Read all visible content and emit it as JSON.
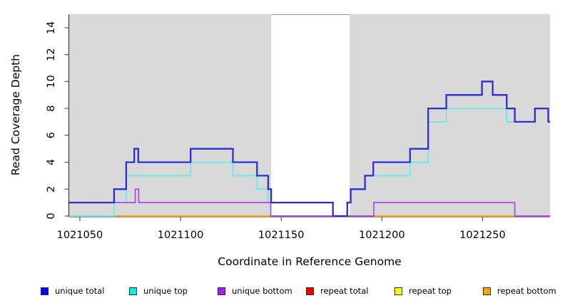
{
  "chart_data": {
    "type": "line",
    "subtype": "step-coverage-plot",
    "title": "",
    "xlabel": "Coordinate in Reference Genome",
    "ylabel": "Read Coverage Depth",
    "xlim": [
      1021044.7,
      1021283.5
    ],
    "ylim": [
      0,
      15
    ],
    "x_ticks": [
      1021050,
      1021100,
      1021150,
      1021200,
      1021250
    ],
    "y_ticks": [
      0,
      2,
      4,
      6,
      8,
      10,
      12,
      14
    ],
    "grid": "off",
    "plot_bg": "#d9d9d9",
    "gap_region": {
      "x0": 1021145,
      "x1": 1021184,
      "fill": "#ffffff",
      "note": "white vertical band over full plot height"
    },
    "series": [
      {
        "name": "repeat total",
        "legend_color": "#ee0000",
        "line_color": "#dd4466",
        "width": 1.5,
        "note": "depth 0 across plot; hidden beneath other zero-depth lines",
        "segments": [
          {
            "points": [
              [
                1021044.7,
                0
              ]
            ],
            "end": 1021283.5
          }
        ]
      },
      {
        "name": "repeat top",
        "legend_color": "#ffff00",
        "line_color": "#93e493",
        "width": 1.9,
        "note": "depth 0 on left flank; renders pale green where it overlaps unique-top at 0",
        "segments": [
          {
            "points": [
              [
                1021044.7,
                0
              ]
            ],
            "end": 1021067
          }
        ]
      },
      {
        "name": "unique top",
        "legend_color": "#00eeee",
        "line_color": "#66e8ea",
        "width": 1.7,
        "segments": [
          {
            "points": [
              [
                1021044.7,
                0
              ],
              [
                1021067,
                1
              ],
              [
                1021073,
                3
              ],
              [
                1021105,
                4
              ],
              [
                1021126,
                3
              ],
              [
                1021138,
                2
              ],
              [
                1021143.5,
                1
              ]
            ],
            "end": 1021145
          },
          {
            "points": [
              [
                1021195.7,
                3
              ],
              [
                1021214,
                4
              ],
              [
                1021223,
                7
              ],
              [
                1021232,
                8
              ],
              [
                1021262,
                7
              ],
              [
                1021276,
                8
              ],
              [
                1021282.6,
                7
              ]
            ],
            "end": 1021283.5
          }
        ]
      },
      {
        "name": "repeat bottom",
        "legend_color": "#ffa500",
        "line_color": "#ffa319",
        "width": 1.9,
        "segments": [
          {
            "points": [
              [
                1021067,
                0
              ]
            ],
            "end": 1021145
          },
          {
            "points": [
              [
                1021196,
                0
              ]
            ],
            "end": 1021266
          }
        ]
      },
      {
        "name": "unique bottom",
        "legend_color": "#a020f0",
        "line_color": "#a948e8",
        "width": 1.7,
        "segments": [
          {
            "points": [
              [
                1021044.7,
                1
              ],
              [
                1021077.5,
                2
              ],
              [
                1021079.2,
                1
              ],
              [
                1021144.8,
                0
              ],
              [
                1021196,
                1
              ],
              [
                1021266,
                0
              ]
            ],
            "end": 1021283.5
          }
        ]
      },
      {
        "name": "unique total",
        "legend_color": "#0000ee",
        "line_color": "#2d2dd6",
        "width": 2.3,
        "segments": [
          {
            "points": [
              [
                1021044.7,
                1
              ],
              [
                1021067,
                2
              ],
              [
                1021073,
                4
              ],
              [
                1021077,
                5
              ],
              [
                1021079,
                4
              ],
              [
                1021105,
                5
              ],
              [
                1021126,
                4
              ],
              [
                1021138,
                3
              ],
              [
                1021143.5,
                2
              ],
              [
                1021145,
                1
              ],
              [
                1021175.7,
                0
              ],
              [
                1021182.8,
                1
              ],
              [
                1021184.5,
                2
              ],
              [
                1021191.6,
                3
              ],
              [
                1021195.7,
                4
              ],
              [
                1021214,
                5
              ],
              [
                1021223,
                8
              ],
              [
                1021232,
                9
              ],
              [
                1021249.7,
                10
              ],
              [
                1021255,
                9
              ],
              [
                1021262,
                8
              ],
              [
                1021266,
                7
              ],
              [
                1021276,
                8
              ],
              [
                1021282.6,
                7
              ]
            ],
            "end": 1021283.5
          }
        ]
      }
    ]
  },
  "legend": {
    "items": [
      {
        "label": "unique total",
        "color": "#0000ee",
        "x": 57
      },
      {
        "label": "unique top",
        "color": "#00eeee",
        "x": 181
      },
      {
        "label": "unique bottom",
        "color": "#a020f0",
        "x": 305
      },
      {
        "label": "repeat total",
        "color": "#ee0000",
        "x": 429
      },
      {
        "label": "repeat top",
        "color": "#ffff00",
        "x": 553
      },
      {
        "label": "repeat bottom",
        "color": "#ffa500",
        "x": 677
      }
    ]
  }
}
